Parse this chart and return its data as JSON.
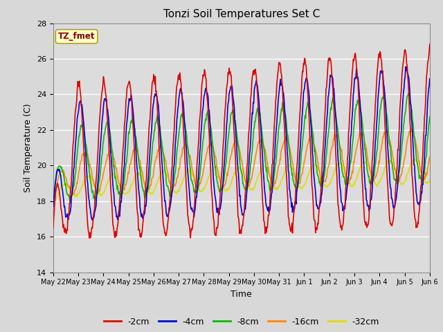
{
  "title": "Tonzi Soil Temperatures Set C",
  "xlabel": "Time",
  "ylabel": "Soil Temperature (C)",
  "ylim": [
    14,
    28
  ],
  "yticks": [
    14,
    16,
    18,
    20,
    22,
    24,
    26,
    28
  ],
  "xtick_labels": [
    "May 22",
    "May 23",
    "May 24",
    "May 25",
    "May 26",
    "May 27",
    "May 28",
    "May 29",
    "May 30",
    "May 31",
    "Jun 1",
    "Jun 2",
    "Jun 3",
    "Jun 4",
    "Jun 5",
    "Jun 6"
  ],
  "series_colors": [
    "#dd0000",
    "#0000dd",
    "#00bb00",
    "#ff8800",
    "#dddd00"
  ],
  "series_labels": [
    "-2cm",
    "-4cm",
    "-8cm",
    "-16cm",
    "-32cm"
  ],
  "legend_label": "TZ_fmet",
  "legend_bg": "#ffffcc",
  "legend_border": "#aaaa00",
  "fig_bg": "#d8d8d8",
  "plot_bg": "#dcdcdc",
  "grid_color": "#ffffff",
  "linewidth": 1.2
}
